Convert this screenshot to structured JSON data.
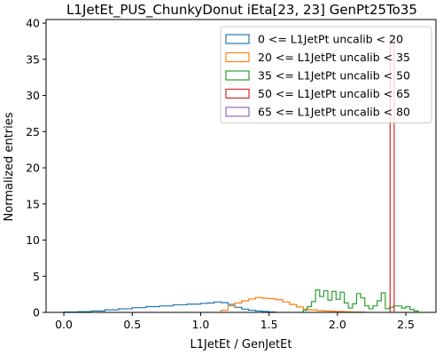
{
  "chart_data": {
    "type": "histogram",
    "title": "L1JetEt_PUS_ChunkyDonut iEta[23, 23] GenPt25To35",
    "xlabel": "L1JetEt / GenJetEt",
    "ylabel": "Normalized entries",
    "xlim": [
      -0.13,
      2.72
    ],
    "ylim": [
      0,
      40.5
    ],
    "xticks": [
      0.0,
      0.5,
      1.0,
      1.5,
      2.0,
      2.5
    ],
    "xtick_labels": [
      "0.0",
      "0.5",
      "1.0",
      "1.5",
      "2.0",
      "2.5"
    ],
    "yticks": [
      0,
      5,
      10,
      15,
      20,
      25,
      30,
      35,
      40
    ],
    "ytick_labels": [
      "0",
      "5",
      "10",
      "15",
      "20",
      "25",
      "30",
      "35",
      "40"
    ],
    "legend_position": "top-right",
    "grid": false,
    "series": [
      {
        "name": "0 <= L1JetPt uncalib < 20",
        "color": "#1f77b4",
        "edges": [
          0.0,
          0.1,
          0.2,
          0.3,
          0.4,
          0.5,
          0.6,
          0.7,
          0.8,
          0.9,
          1.0,
          1.05,
          1.1,
          1.15,
          1.2,
          1.25,
          1.3,
          1.35,
          1.4,
          1.45,
          1.5,
          1.55
        ],
        "values": [
          0.05,
          0.1,
          0.2,
          0.35,
          0.5,
          0.65,
          0.8,
          0.9,
          1.05,
          1.15,
          1.25,
          1.3,
          1.45,
          1.35,
          1.1,
          0.7,
          0.45,
          0.3,
          0.2,
          0.12,
          0.05
        ]
      },
      {
        "name": "20 <= L1JetPt uncalib < 35",
        "color": "#ff7f0e",
        "edges": [
          1.15,
          1.2,
          1.25,
          1.3,
          1.35,
          1.4,
          1.45,
          1.5,
          1.55,
          1.6,
          1.65,
          1.7,
          1.75,
          1.8,
          1.85,
          1.9,
          1.95,
          2.0,
          2.05,
          2.1,
          2.15,
          2.2
        ],
        "values": [
          0.3,
          0.9,
          1.3,
          1.6,
          1.85,
          2.05,
          1.95,
          1.9,
          1.75,
          1.45,
          1.1,
          0.75,
          0.45,
          0.35,
          0.25,
          0.2,
          0.15,
          0.12,
          0.08,
          0.05,
          0.03
        ]
      },
      {
        "name": "35 <= L1JetPt uncalib < 50",
        "color": "#2ca02c",
        "edges": [
          1.75,
          1.78,
          1.81,
          1.84,
          1.87,
          1.9,
          1.93,
          1.96,
          1.99,
          2.02,
          2.05,
          2.08,
          2.11,
          2.14,
          2.17,
          2.2,
          2.23,
          2.26,
          2.29,
          2.32,
          2.35,
          2.38,
          2.41,
          2.44,
          2.47,
          2.5,
          2.53,
          2.56,
          2.59
        ],
        "values": [
          0.3,
          0.8,
          1.5,
          3.1,
          2.2,
          3.0,
          1.7,
          2.9,
          1.8,
          2.8,
          1.3,
          0.6,
          1.2,
          2.6,
          2.0,
          0.9,
          0.5,
          0.9,
          1.6,
          2.7,
          0.5,
          0.7,
          0.9,
          0.9,
          0.6,
          0.8,
          0.4,
          0.2
        ]
      },
      {
        "name": "50 <= L1JetPt uncalib < 65",
        "color": "#d62728",
        "edges": [
          2.385,
          2.415
        ],
        "values": [
          38.2
        ]
      },
      {
        "name": "65 <= L1JetPt uncalib < 80",
        "color": "#9467bd",
        "edges": [],
        "values": []
      }
    ]
  }
}
